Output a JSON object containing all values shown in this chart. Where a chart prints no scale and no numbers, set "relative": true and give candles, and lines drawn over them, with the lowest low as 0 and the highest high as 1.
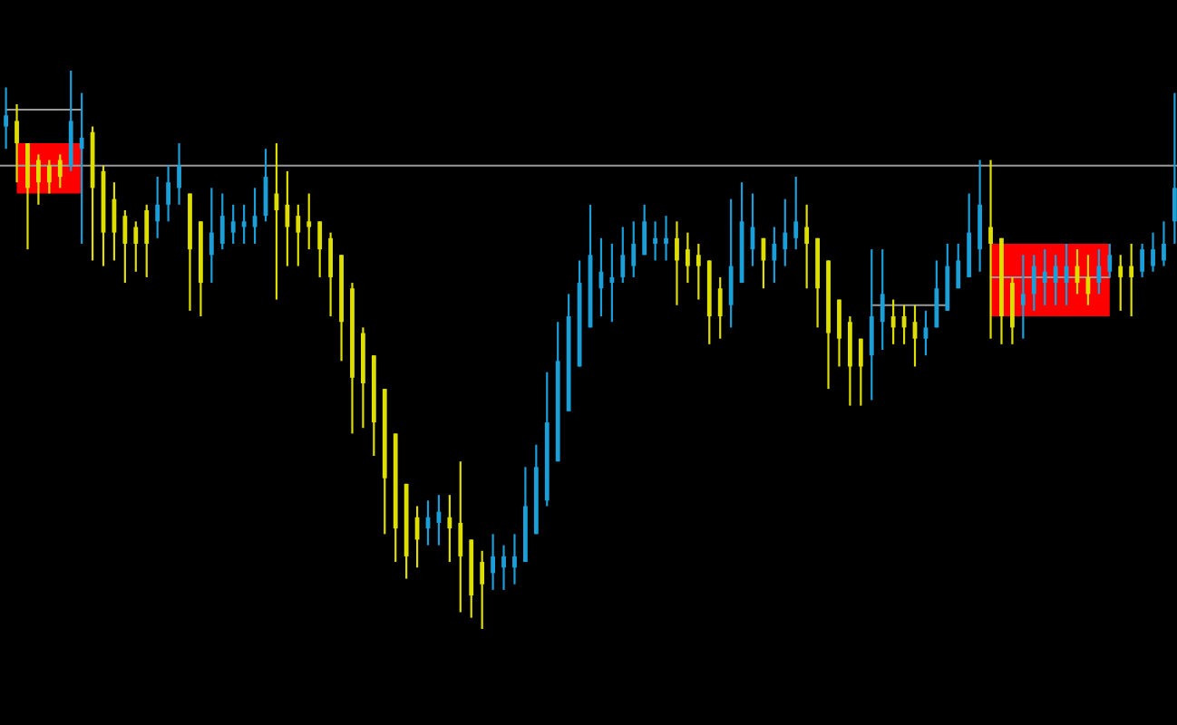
{
  "chart_data": {
    "type": "candlestick",
    "relative": true,
    "categories": [
      null,
      null,
      null,
      null,
      null,
      null,
      null,
      null,
      null,
      null,
      null,
      null,
      null,
      null,
      null,
      null,
      null,
      null,
      null,
      null,
      null,
      null,
      null,
      null,
      null,
      null,
      null,
      null,
      null,
      null,
      null,
      null,
      null,
      null,
      null,
      null,
      null,
      null,
      null,
      null,
      null,
      null,
      null,
      null,
      null,
      null,
      null,
      null,
      null,
      null,
      null,
      null,
      null,
      null,
      null,
      null,
      null,
      null,
      null,
      null,
      null,
      null,
      null,
      null,
      null,
      null,
      null,
      null,
      null,
      null,
      null,
      null,
      null,
      null,
      null,
      null,
      null,
      null,
      null,
      null,
      null,
      null,
      null,
      null,
      null,
      null,
      null,
      null,
      null,
      null,
      null,
      null,
      null,
      null,
      null,
      null,
      null,
      null,
      null,
      null,
      null,
      null,
      null,
      null,
      null,
      null,
      null,
      null,
      null
    ],
    "ohlc": [
      [
        0.9,
        0.97,
        0.86,
        0.92
      ],
      [
        0.91,
        0.94,
        0.8,
        0.87
      ],
      [
        0.87,
        0.87,
        0.68,
        0.79
      ],
      [
        0.84,
        0.85,
        0.76,
        0.8
      ],
      [
        0.83,
        0.84,
        0.78,
        0.8
      ],
      [
        0.84,
        0.85,
        0.79,
        0.81
      ],
      [
        0.83,
        1,
        0.82,
        0.91
      ],
      [
        0.86,
        0.96,
        0.69,
        0.88
      ],
      [
        0.89,
        0.9,
        0.66,
        0.79
      ],
      [
        0.82,
        0.83,
        0.65,
        0.71
      ],
      [
        0.77,
        0.8,
        0.66,
        0.71
      ],
      [
        0.74,
        0.75,
        0.62,
        0.69
      ],
      [
        0.72,
        0.73,
        0.64,
        0.69
      ],
      [
        0.75,
        0.76,
        0.63,
        0.69
      ],
      [
        0.73,
        0.81,
        0.7,
        0.76
      ],
      [
        0.76,
        0.83,
        0.73,
        0.8
      ],
      [
        0.79,
        0.87,
        0.76,
        0.83
      ],
      [
        0.78,
        0.78,
        0.57,
        0.68
      ],
      [
        0.73,
        0.73,
        0.56,
        0.62
      ],
      [
        0.67,
        0.79,
        0.62,
        0.71
      ],
      [
        0.69,
        0.78,
        0.68,
        0.74
      ],
      [
        0.71,
        0.76,
        0.69,
        0.73
      ],
      [
        0.72,
        0.76,
        0.69,
        0.73
      ],
      [
        0.72,
        0.79,
        0.69,
        0.74
      ],
      [
        0.74,
        0.86,
        0.73,
        0.81
      ],
      [
        0.78,
        0.87,
        0.59,
        0.75
      ],
      [
        0.76,
        0.82,
        0.65,
        0.72
      ],
      [
        0.74,
        0.76,
        0.65,
        0.71
      ],
      [
        0.73,
        0.78,
        0.68,
        0.72
      ],
      [
        0.73,
        0.73,
        0.63,
        0.68
      ],
      [
        0.7,
        0.71,
        0.56,
        0.63
      ],
      [
        0.67,
        0.67,
        0.48,
        0.55
      ],
      [
        0.61,
        0.62,
        0.35,
        0.45
      ],
      [
        0.53,
        0.54,
        0.36,
        0.44
      ],
      [
        0.49,
        0.49,
        0.31,
        0.37
      ],
      [
        0.43,
        0.43,
        0.17,
        0.27
      ],
      [
        0.35,
        0.35,
        0.12,
        0.18
      ],
      [
        0.26,
        0.26,
        0.09,
        0.13
      ],
      [
        0.2,
        0.22,
        0.11,
        0.16
      ],
      [
        0.18,
        0.23,
        0.15,
        0.2
      ],
      [
        0.19,
        0.24,
        0.15,
        0.21
      ],
      [
        0.2,
        0.24,
        0.12,
        0.18
      ],
      [
        0.19,
        0.3,
        0.03,
        0.13
      ],
      [
        0.16,
        0.16,
        0.02,
        0.06
      ],
      [
        0.12,
        0.14,
        0,
        0.08
      ],
      [
        0.1,
        0.17,
        0.07,
        0.13
      ],
      [
        0.11,
        0.15,
        0.07,
        0.13
      ],
      [
        0.11,
        0.17,
        0.08,
        0.13
      ],
      [
        0.12,
        0.29,
        0.12,
        0.22
      ],
      [
        0.17,
        0.33,
        0.17,
        0.29
      ],
      [
        0.23,
        0.46,
        0.22,
        0.37
      ],
      [
        0.3,
        0.55,
        0.3,
        0.48
      ],
      [
        0.39,
        0.6,
        0.39,
        0.56
      ],
      [
        0.47,
        0.66,
        0.47,
        0.62
      ],
      [
        0.54,
        0.76,
        0.54,
        0.67
      ],
      [
        0.61,
        0.7,
        0.56,
        0.64
      ],
      [
        0.62,
        0.69,
        0.55,
        0.63
      ],
      [
        0.63,
        0.72,
        0.62,
        0.67
      ],
      [
        0.65,
        0.73,
        0.63,
        0.69
      ],
      [
        0.67,
        0.76,
        0.67,
        0.73
      ],
      [
        0.69,
        0.73,
        0.66,
        0.7
      ],
      [
        0.69,
        0.74,
        0.66,
        0.7
      ],
      [
        0.7,
        0.73,
        0.58,
        0.66
      ],
      [
        0.68,
        0.71,
        0.62,
        0.65
      ],
      [
        0.67,
        0.69,
        0.59,
        0.65
      ],
      [
        0.66,
        0.66,
        0.51,
        0.56
      ],
      [
        0.61,
        0.63,
        0.52,
        0.56
      ],
      [
        0.58,
        0.77,
        0.54,
        0.65
      ],
      [
        0.62,
        0.8,
        0.62,
        0.73
      ],
      [
        0.68,
        0.78,
        0.65,
        0.72
      ],
      [
        0.7,
        0.7,
        0.61,
        0.66
      ],
      [
        0.66,
        0.72,
        0.62,
        0.69
      ],
      [
        0.68,
        0.77,
        0.65,
        0.71
      ],
      [
        0.7,
        0.81,
        0.68,
        0.73
      ],
      [
        0.72,
        0.76,
        0.61,
        0.69
      ],
      [
        0.7,
        0.7,
        0.54,
        0.61
      ],
      [
        0.66,
        0.66,
        0.43,
        0.53
      ],
      [
        0.59,
        0.59,
        0.47,
        0.52
      ],
      [
        0.55,
        0.56,
        0.4,
        0.47
      ],
      [
        0.52,
        0.52,
        0.4,
        0.47
      ],
      [
        0.49,
        0.68,
        0.41,
        0.56
      ],
      [
        0.55,
        0.68,
        0.5,
        0.6
      ],
      [
        0.56,
        0.59,
        0.51,
        0.54
      ],
      [
        0.56,
        0.58,
        0.51,
        0.54
      ],
      [
        0.55,
        0.58,
        0.47,
        0.52
      ],
      [
        0.52,
        0.57,
        0.49,
        0.54
      ],
      [
        0.54,
        0.66,
        0.54,
        0.61
      ],
      [
        0.57,
        0.69,
        0.57,
        0.65
      ],
      [
        0.61,
        0.69,
        0.61,
        0.66
      ],
      [
        0.63,
        0.78,
        0.63,
        0.71
      ],
      [
        0.68,
        0.84,
        0.64,
        0.76
      ],
      [
        0.72,
        0.84,
        0.52,
        0.69
      ],
      [
        0.7,
        0.7,
        0.51,
        0.56
      ],
      [
        0.62,
        0.63,
        0.51,
        0.54
      ],
      [
        0.58,
        0.67,
        0.52,
        0.6
      ],
      [
        0.6,
        0.67,
        0.57,
        0.65
      ],
      [
        0.62,
        0.68,
        0.58,
        0.64
      ],
      [
        0.62,
        0.67,
        0.58,
        0.65
      ],
      [
        0.62,
        0.69,
        0.58,
        0.65
      ],
      [
        0.65,
        0.68,
        0.6,
        0.62
      ],
      [
        0.63,
        0.67,
        0.58,
        0.6
      ],
      [
        0.62,
        0.68,
        0.6,
        0.65
      ],
      [
        0.64,
        0.69,
        0.63,
        0.67
      ],
      [
        0.65,
        0.67,
        0.57,
        0.63
      ],
      [
        0.65,
        0.69,
        0.56,
        0.63
      ],
      [
        0.64,
        0.69,
        0.63,
        0.68
      ],
      [
        0.65,
        0.71,
        0.64,
        0.68
      ],
      [
        0.66,
        0.73,
        0.65,
        0.69
      ],
      [
        0.73,
        0.96,
        0.69,
        0.79
      ]
    ],
    "colors": [
      "#1b9fd9",
      "#dede00",
      "#dede00",
      "#dede00",
      "#dede00",
      "#dede00",
      "#1b9fd9",
      "#1b9fd9",
      "#dede00",
      "#dede00",
      "#dede00",
      "#dede00",
      "#dede00",
      "#dede00",
      "#1b9fd9",
      "#1b9fd9",
      "#1b9fd9",
      "#dede00",
      "#dede00",
      "#1b9fd9",
      "#1b9fd9",
      "#1b9fd9",
      "#1b9fd9",
      "#1b9fd9",
      "#1b9fd9",
      "#dede00",
      "#dede00",
      "#dede00",
      "#dede00",
      "#dede00",
      "#dede00",
      "#dede00",
      "#dede00",
      "#dede00",
      "#dede00",
      "#dede00",
      "#dede00",
      "#dede00",
      "#dede00",
      "#1b9fd9",
      "#1b9fd9",
      "#dede00",
      "#dede00",
      "#dede00",
      "#dede00",
      "#1b9fd9",
      "#1b9fd9",
      "#1b9fd9",
      "#1b9fd9",
      "#1b9fd9",
      "#1b9fd9",
      "#1b9fd9",
      "#1b9fd9",
      "#1b9fd9",
      "#1b9fd9",
      "#1b9fd9",
      "#1b9fd9",
      "#1b9fd9",
      "#1b9fd9",
      "#1b9fd9",
      "#1b9fd9",
      "#1b9fd9",
      "#dede00",
      "#dede00",
      "#dede00",
      "#dede00",
      "#dede00",
      "#1b9fd9",
      "#1b9fd9",
      "#1b9fd9",
      "#dede00",
      "#1b9fd9",
      "#1b9fd9",
      "#1b9fd9",
      "#dede00",
      "#dede00",
      "#dede00",
      "#dede00",
      "#dede00",
      "#dede00",
      "#1b9fd9",
      "#1b9fd9",
      "#dede00",
      "#dede00",
      "#dede00",
      "#1b9fd9",
      "#1b9fd9",
      "#1b9fd9",
      "#1b9fd9",
      "#1b9fd9",
      "#1b9fd9",
      "#dede00",
      "#dede00",
      "#dede00",
      "#1b9fd9",
      "#1b9fd9",
      "#1b9fd9",
      "#1b9fd9",
      "#1b9fd9",
      "#dede00",
      "#dede00",
      "#1b9fd9",
      "#1b9fd9",
      "#dede00",
      "#dede00",
      "#1b9fd9",
      "#1b9fd9",
      "#1b9fd9",
      "#1b9fd9"
    ],
    "series": [
      {
        "type": "line",
        "color": "#ff0000",
        "values": [
          null,
          null,
          null,
          null,
          null,
          null,
          null,
          null,
          null,
          null,
          null,
          null,
          null,
          null,
          null,
          null,
          null,
          null,
          null,
          null,
          null,
          null,
          null,
          null,
          null,
          null,
          null,
          null,
          null,
          null,
          null,
          null,
          null,
          null,
          null,
          null,
          null,
          null,
          null,
          null,
          null,
          null,
          null,
          null,
          null,
          null,
          null,
          null,
          null,
          null,
          null,
          null,
          null,
          null,
          null,
          null,
          null,
          null,
          null,
          null,
          null,
          null,
          null,
          null,
          null,
          null,
          null,
          null,
          null,
          null,
          null,
          null,
          null,
          null,
          null,
          null,
          null,
          null,
          null,
          null,
          null,
          null,
          null,
          null,
          null,
          null,
          null,
          null,
          null,
          null,
          null,
          null,
          null,
          null,
          null,
          null,
          null,
          null,
          null,
          null,
          null,
          null,
          null,
          null,
          null,
          null,
          null,
          null,
          null
        ],
        "upper": [
          null,
          0.87,
          0.87,
          0.87,
          0.87,
          0.87,
          0.87,
          0.87,
          null,
          null,
          null,
          null,
          null,
          null,
          null,
          null,
          null,
          null,
          null,
          null,
          null,
          null,
          null,
          null,
          null,
          null,
          null,
          null,
          null,
          null,
          null,
          null,
          null,
          null,
          null,
          null,
          null,
          null,
          null,
          null,
          null,
          null,
          null,
          null,
          null,
          null,
          null,
          null,
          null,
          null,
          null,
          null,
          null,
          null,
          null,
          null,
          null,
          null,
          null,
          null,
          null,
          null,
          null,
          null,
          null,
          null,
          null,
          null,
          null,
          null,
          null,
          null,
          null,
          null,
          null,
          null,
          null,
          null,
          null,
          null,
          null,
          null,
          null,
          null,
          null,
          null,
          null,
          null,
          null,
          null,
          null,
          0.69,
          0.69,
          0.69,
          0.69,
          0.69,
          0.69,
          0.69,
          0.69,
          0.69,
          0.69,
          0.69,
          0.69,
          null,
          null,
          null,
          null,
          null,
          null
        ],
        "lower": [
          null,
          0.78,
          0.78,
          0.78,
          0.78,
          0.78,
          0.78,
          0.78,
          null,
          null,
          null,
          null,
          null,
          null,
          null,
          null,
          null,
          null,
          null,
          null,
          null,
          null,
          null,
          null,
          null,
          null,
          null,
          null,
          null,
          null,
          null,
          null,
          null,
          null,
          null,
          null,
          null,
          null,
          null,
          null,
          null,
          null,
          null,
          null,
          null,
          null,
          null,
          null,
          null,
          null,
          null,
          null,
          null,
          null,
          null,
          null,
          null,
          null,
          null,
          null,
          null,
          null,
          null,
          null,
          null,
          null,
          null,
          null,
          null,
          null,
          null,
          null,
          null,
          null,
          null,
          null,
          null,
          null,
          null,
          null,
          null,
          null,
          null,
          null,
          null,
          null,
          null,
          null,
          null,
          null,
          null,
          0.56,
          0.56,
          0.56,
          0.56,
          0.56,
          0.56,
          0.56,
          0.56,
          0.56,
          0.56,
          0.56,
          0.56,
          null,
          null,
          null,
          null,
          null,
          null
        ]
      },
      {
        "type": "line",
        "color": "#9a9a9a",
        "values": [
          0.93,
          0.93,
          0.93,
          0.93,
          0.93,
          0.93,
          0.93,
          0.93,
          null,
          null,
          null,
          null,
          null,
          null,
          null,
          null,
          null,
          null,
          null,
          null,
          null,
          null,
          null,
          null,
          null,
          null,
          null,
          null,
          null,
          null,
          null,
          null,
          null,
          null,
          null,
          null,
          null,
          null,
          null,
          null,
          null,
          null,
          null,
          null,
          null,
          null,
          null,
          null,
          null,
          null,
          null,
          null,
          null,
          null,
          null,
          null,
          null,
          null,
          null,
          null,
          null,
          null,
          null,
          null,
          null,
          null,
          null,
          null,
          null,
          null,
          null,
          null,
          null,
          null,
          null,
          null,
          null,
          null,
          null,
          null,
          0.58,
          0.58,
          0.58,
          0.58,
          0.58,
          0.58,
          0.58,
          0.58,
          null,
          null,
          null,
          0.63,
          0.63,
          0.63,
          0.63,
          0.63,
          0.63,
          0.63,
          0.63,
          0.63,
          0.63,
          0.63,
          0.63,
          null,
          null,
          null,
          null,
          null,
          null
        ]
      }
    ],
    "ref_lines": [
      {
        "axis": "y",
        "value": 0.83,
        "color": "#9a9a9a"
      }
    ]
  }
}
